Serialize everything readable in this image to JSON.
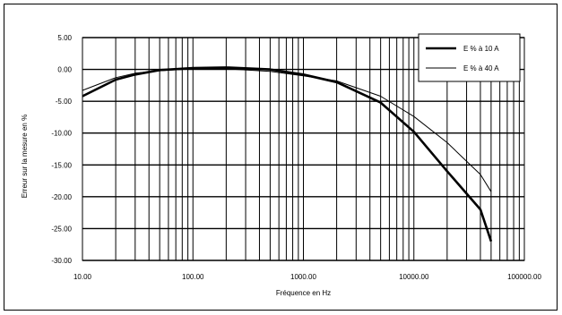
{
  "chart_data": {
    "type": "line",
    "xscale": "log",
    "xlabel": "Fréquence en Hz",
    "ylabel": "Erreur sur la mesure en %",
    "xlim": [
      10,
      100000
    ],
    "ylim": [
      -30,
      5
    ],
    "grid": true,
    "legend_position": "top-right",
    "x_tick_labels": [
      "10.00",
      "100.00",
      "1000.00",
      "10000.00",
      "100000.00"
    ],
    "y_tick_labels": [
      "5.00",
      "0.00",
      "-5.00",
      "-10.00",
      "-15.00",
      "-20.00",
      "-25.00",
      "-30.00"
    ],
    "series": [
      {
        "name": "E % à 10 A",
        "line_width": "thick",
        "x": [
          10,
          20,
          30,
          50,
          100,
          200,
          500,
          1000,
          2000,
          5000,
          10000,
          20000,
          40000,
          50000
        ],
        "y": [
          -4.2,
          -1.6,
          -0.8,
          -0.1,
          0.2,
          0.3,
          0.0,
          -0.8,
          -2.0,
          -5.2,
          -9.8,
          -16.0,
          -22.0,
          -27.0
        ]
      },
      {
        "name": "E % à 40 A",
        "line_width": "thin",
        "x": [
          10,
          20,
          30,
          50,
          100,
          200,
          500,
          1000,
          2000,
          5000,
          10000,
          20000,
          40000,
          50000
        ],
        "y": [
          -3.3,
          -1.3,
          -0.6,
          -0.2,
          0.1,
          0.1,
          -0.3,
          -1.0,
          -1.8,
          -4.2,
          -7.4,
          -11.5,
          -16.5,
          -19.2
        ]
      }
    ]
  }
}
